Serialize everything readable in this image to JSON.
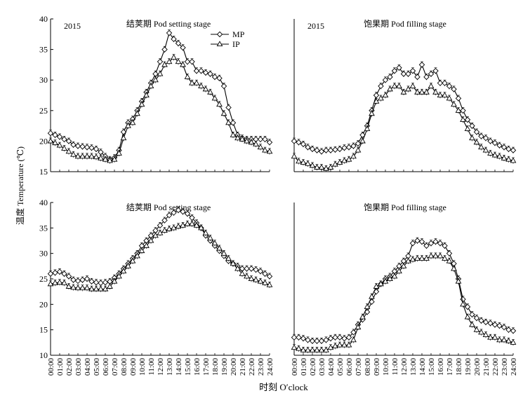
{
  "figure": {
    "ylabel": "温度 Temperature (℃)",
    "xlabel": "时刻 O′clock",
    "colors": {
      "mp": "#000000",
      "ip": "#000000",
      "axis": "#000000"
    },
    "marker_icons": {
      "mp": "diamond-open",
      "ip": "triangle-open"
    }
  },
  "chart_data": [
    {
      "type": "line",
      "panel_year": "2015",
      "title": "结荚期 Pod setting stage",
      "ylim": [
        15,
        40
      ],
      "yticks": [
        15,
        20,
        25,
        30,
        35,
        40
      ],
      "xlim": [
        0,
        24
      ],
      "legend": {
        "placement": "top-right",
        "entries": [
          "MP",
          "IP"
        ]
      },
      "series": [
        {
          "name": "MP",
          "marker": "diamond-open",
          "values": [
            21.3,
            21.0,
            20.7,
            20.3,
            20.0,
            19.4,
            19.2,
            19.1,
            19.0,
            18.9,
            18.7,
            18.2,
            17.5,
            17.0,
            17.3,
            18.5,
            21.5,
            23.0,
            23.6,
            25.0,
            26.5,
            28.0,
            29.5,
            31.0,
            33.0,
            35.0,
            37.7,
            36.7,
            36.0,
            35.3,
            33.0,
            33.0,
            31.5,
            31.5,
            31.2,
            31.0,
            30.5,
            30.3,
            29.0,
            25.5,
            23.0,
            21.0,
            20.5,
            20.3,
            20.3,
            20.3,
            20.3,
            20.3,
            19.8
          ]
        },
        {
          "name": "IP",
          "marker": "triangle-open",
          "values": [
            20.0,
            19.7,
            19.3,
            18.8,
            18.3,
            17.8,
            17.5,
            17.5,
            17.5,
            17.5,
            17.4,
            17.2,
            17.0,
            16.8,
            17.0,
            18.0,
            20.5,
            22.5,
            23.0,
            24.5,
            26.0,
            27.5,
            29.0,
            30.0,
            31.0,
            32.5,
            33.0,
            33.7,
            33.0,
            32.5,
            30.5,
            29.5,
            29.5,
            29.0,
            28.5,
            28.0,
            27.0,
            26.0,
            24.5,
            23.0,
            21.0,
            20.5,
            20.3,
            20.0,
            19.8,
            19.5,
            19.0,
            18.5,
            18.3
          ]
        }
      ]
    },
    {
      "type": "line",
      "panel_year": "2015",
      "title": "饱果期 Pod filling stage",
      "ylim": [
        15,
        40
      ],
      "yticks": [],
      "xlim": [
        0,
        24
      ],
      "series": [
        {
          "name": "MP",
          "marker": "diamond-open",
          "values": [
            20.0,
            19.8,
            19.5,
            19.0,
            18.7,
            18.5,
            18.3,
            18.5,
            18.5,
            18.6,
            18.7,
            18.9,
            19.0,
            19.2,
            19.6,
            21.0,
            22.5,
            25.0,
            27.5,
            29.0,
            30.0,
            30.5,
            31.5,
            32.0,
            31.0,
            31.0,
            31.5,
            30.5,
            32.5,
            30.5,
            31.0,
            31.5,
            29.5,
            29.5,
            29.0,
            28.5,
            27.0,
            25.0,
            23.5,
            22.5,
            21.5,
            20.8,
            20.5,
            20.0,
            19.7,
            19.3,
            19.0,
            18.7,
            18.5
          ]
        },
        {
          "name": "IP",
          "marker": "triangle-open",
          "values": [
            17.5,
            16.7,
            16.5,
            16.3,
            16.0,
            15.7,
            15.7,
            15.5,
            15.7,
            16.2,
            16.5,
            16.8,
            17.0,
            17.5,
            18.5,
            20.0,
            22.0,
            24.5,
            26.5,
            27.0,
            27.5,
            28.5,
            29.0,
            29.0,
            28.0,
            28.5,
            29.0,
            28.0,
            28.0,
            28.0,
            29.0,
            28.0,
            27.5,
            27.5,
            27.0,
            26.0,
            25.0,
            23.5,
            22.0,
            20.5,
            19.8,
            19.0,
            18.5,
            18.0,
            17.7,
            17.5,
            17.2,
            17.0,
            16.8
          ]
        }
      ]
    },
    {
      "type": "line",
      "title": "结荚期 Pod setting stage",
      "ylim": [
        10,
        40
      ],
      "yticks": [
        10,
        15,
        20,
        25,
        30,
        35,
        40
      ],
      "xlim": [
        0,
        24
      ],
      "series": [
        {
          "name": "MP",
          "marker": "diamond-open",
          "values": [
            26.0,
            26.2,
            26.4,
            26.0,
            25.5,
            24.8,
            24.6,
            24.8,
            25.0,
            24.5,
            24.3,
            24.2,
            24.3,
            24.5,
            25.2,
            26.0,
            27.0,
            28.0,
            29.0,
            30.0,
            31.5,
            32.5,
            33.5,
            34.5,
            35.5,
            36.5,
            37.5,
            38.0,
            38.5,
            38.2,
            37.8,
            37.0,
            36.0,
            35.0,
            33.5,
            32.5,
            31.5,
            30.5,
            29.5,
            28.5,
            28.0,
            27.5,
            27.0,
            27.0,
            27.0,
            26.8,
            26.5,
            26.0,
            25.5
          ]
        },
        {
          "name": "IP",
          "marker": "triangle-open",
          "values": [
            24.0,
            24.2,
            24.3,
            24.2,
            23.5,
            23.3,
            23.2,
            23.2,
            23.2,
            23.0,
            23.0,
            23.0,
            23.0,
            23.5,
            24.5,
            25.5,
            26.5,
            27.5,
            28.5,
            29.5,
            30.5,
            31.5,
            32.5,
            33.5,
            34.0,
            34.5,
            34.8,
            35.0,
            35.3,
            35.5,
            35.8,
            35.8,
            35.5,
            35.0,
            34.0,
            33.0,
            32.0,
            31.0,
            30.0,
            29.0,
            28.0,
            27.0,
            26.0,
            25.5,
            25.0,
            24.8,
            24.5,
            24.2,
            23.8
          ]
        }
      ]
    },
    {
      "type": "line",
      "title": "饱果期 Pod filling stage",
      "ylim": [
        10,
        40
      ],
      "yticks": [],
      "xlim": [
        0,
        24
      ],
      "xticks": [
        "00:00",
        "01:00",
        "02:00",
        "03:00",
        "04:00",
        "05:00",
        "06:00",
        "07:00",
        "08:00",
        "09:00",
        "10:00",
        "11:00",
        "12:00",
        "13:00",
        "14:00",
        "15:00",
        "16:00",
        "17:00",
        "18:00",
        "19:00",
        "20:00",
        "21:00",
        "22:00",
        "23:00",
        "24:00"
      ],
      "series": [
        {
          "name": "MP",
          "marker": "diamond-open",
          "values": [
            13.5,
            13.5,
            13.3,
            13.0,
            12.8,
            12.8,
            12.8,
            13.0,
            13.3,
            13.5,
            13.5,
            13.3,
            13.5,
            14.5,
            16.0,
            17.0,
            18.5,
            20.5,
            22.5,
            24.0,
            25.0,
            25.5,
            26.5,
            27.5,
            28.5,
            29.5,
            32.0,
            32.5,
            32.3,
            31.5,
            32.0,
            32.3,
            32.0,
            31.5,
            30.0,
            28.0,
            25.0,
            21.0,
            19.5,
            18.0,
            17.3,
            16.8,
            16.5,
            16.3,
            16.0,
            15.8,
            15.5,
            15.0,
            14.8
          ]
        },
        {
          "name": "IP",
          "marker": "triangle-open",
          "values": [
            11.5,
            11.3,
            11.0,
            11.0,
            11.0,
            11.0,
            11.0,
            11.0,
            11.5,
            11.8,
            12.0,
            12.0,
            12.0,
            13.0,
            15.5,
            17.5,
            19.5,
            21.5,
            23.5,
            24.0,
            24.5,
            25.0,
            25.5,
            26.5,
            27.5,
            28.5,
            28.8,
            29.0,
            29.0,
            29.0,
            29.5,
            29.5,
            29.5,
            29.0,
            28.5,
            27.0,
            24.5,
            20.0,
            17.5,
            16.0,
            15.0,
            14.5,
            14.0,
            13.5,
            13.5,
            13.0,
            13.0,
            12.8,
            12.5
          ]
        }
      ]
    }
  ]
}
